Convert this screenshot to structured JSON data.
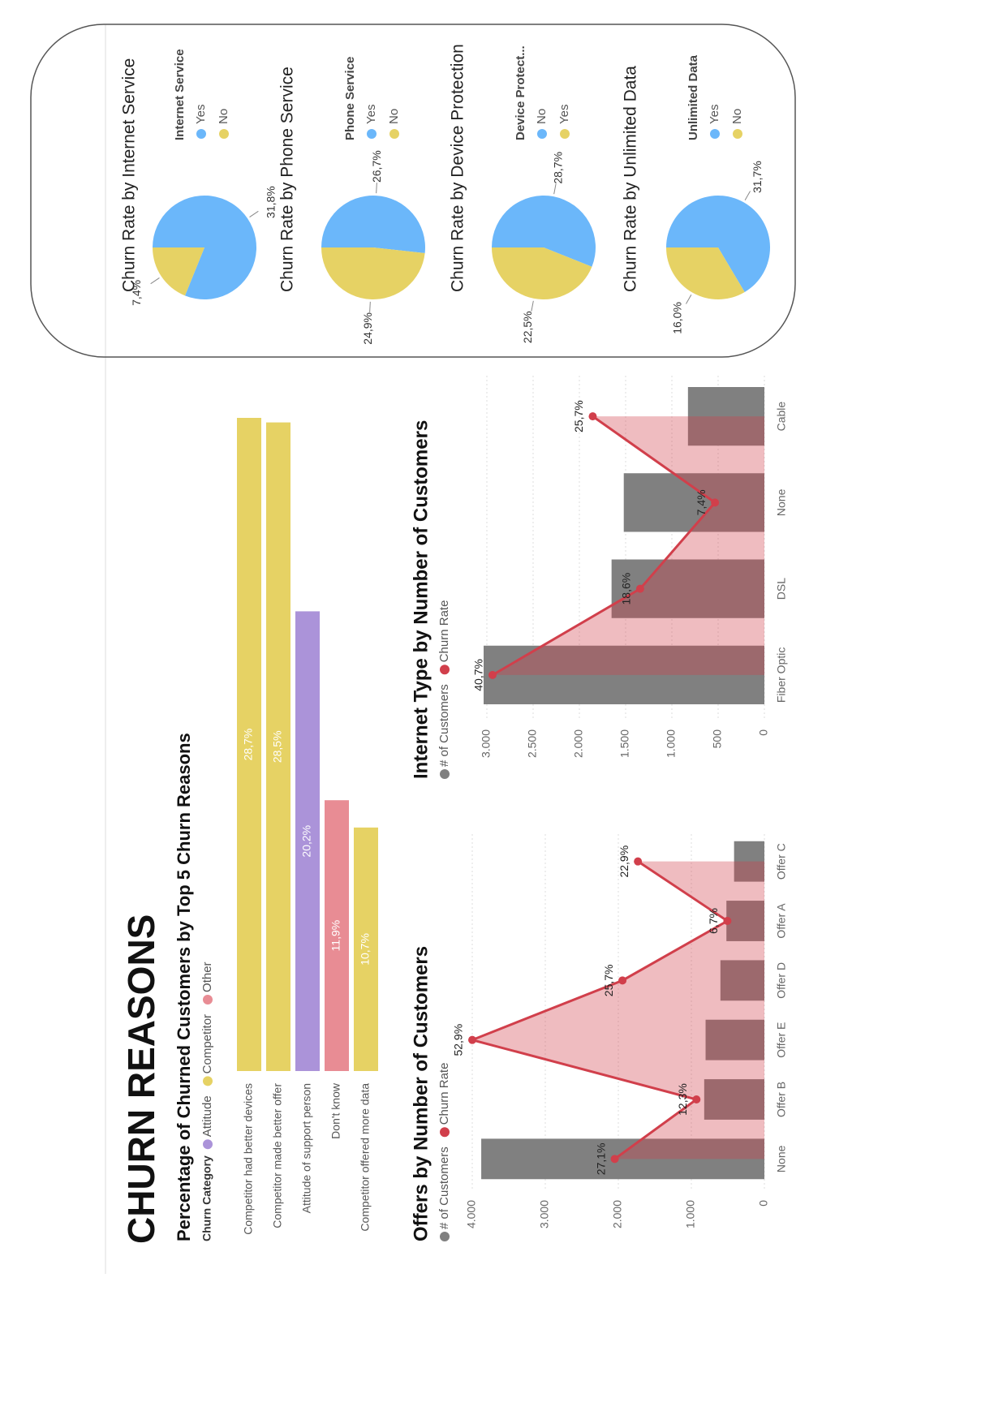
{
  "title": "CHURN REASONS",
  "chart_data": [
    {
      "type": "bar",
      "orientation": "horizontal",
      "title": "Percentage of Churned Customers by Top 5 Churn Reasons",
      "legend_title": "Churn Category",
      "legend": [
        {
          "name": "Attitude",
          "color": "#ab93d9"
        },
        {
          "name": "Competitor",
          "color": "#e6d264"
        },
        {
          "name": "Other",
          "color": "#e88c94"
        }
      ],
      "categories": [
        "Competitor had better devices",
        "Competitor made better offer",
        "Attitude of support person",
        "Don't know",
        "Competitor offered more data"
      ],
      "churn_category": [
        "Competitor",
        "Competitor",
        "Attitude",
        "Other",
        "Competitor"
      ],
      "values": [
        28.7,
        28.5,
        20.2,
        11.9,
        10.7
      ],
      "value_labels": [
        "28,7%",
        "28,5%",
        "20,2%",
        "11,9%",
        "10,7%"
      ]
    },
    {
      "type": "combo",
      "title": "Offers by Number of Customers",
      "categories": [
        "None",
        "Offer B",
        "Offer E",
        "Offer D",
        "Offer A",
        "Offer C"
      ],
      "series": [
        {
          "name": "# of Customers",
          "color": "#808080",
          "values": [
            3877,
            824,
            805,
            602,
            520,
            415
          ]
        },
        {
          "name": "Churn Rate",
          "color": "#d13f4b",
          "axis": "y2",
          "values": [
            27.1,
            12.3,
            52.9,
            25.7,
            6.7,
            22.9
          ],
          "value_labels": [
            "27,1%",
            "12,3%",
            "52,9%",
            "25,7%",
            "6,7%",
            "22,9%"
          ]
        }
      ],
      "ylim": [
        0,
        4000
      ],
      "yticks": [
        0,
        {
          "value": 1000,
          "label": "1.000"
        },
        {
          "value": 2000,
          "label": "2.000"
        },
        {
          "value": 3000,
          "label": "3.000"
        },
        {
          "value": 4000,
          "label": "4.000"
        }
      ],
      "grid": true
    },
    {
      "type": "combo",
      "title": "Internet Type by Number of Customers",
      "categories": [
        "Fiber Optic",
        "DSL",
        "None",
        "Cable"
      ],
      "series": [
        {
          "name": "# of Customers",
          "color": "#808080",
          "values": [
            3035,
            1652,
            1520,
            826
          ]
        },
        {
          "name": "Churn Rate",
          "color": "#d13f4b",
          "axis": "y2",
          "values": [
            40.7,
            18.6,
            7.4,
            25.7
          ],
          "value_labels": [
            "40,7%",
            "18,6%",
            "7,4%",
            "25,7%"
          ]
        }
      ],
      "ylim": [
        0,
        3000
      ],
      "yticks": [
        0,
        500,
        {
          "value": 1000,
          "label": "1.000"
        },
        {
          "value": 1500,
          "label": "1.500"
        },
        {
          "value": 2000,
          "label": "2.000"
        },
        {
          "value": 2500,
          "label": "2.500"
        },
        {
          "value": 3000,
          "label": "3.000"
        }
      ],
      "grid": true
    },
    {
      "type": "pie",
      "title": "Churn Rate by Internet Service",
      "legend_title": "Internet Service",
      "categories": [
        "Yes",
        "No"
      ],
      "values": [
        31.8,
        7.4
      ],
      "value_labels": [
        "31,8%",
        "7,4%"
      ],
      "colors": [
        "#6bb7fa",
        "#e6d264"
      ]
    },
    {
      "type": "pie",
      "title": "Churn Rate by Phone Service",
      "legend_title": "Phone Service",
      "categories": [
        "Yes",
        "No"
      ],
      "values": [
        26.7,
        24.9
      ],
      "value_labels": [
        "26,7%",
        "24,9%"
      ],
      "colors": [
        "#6bb7fa",
        "#e6d264"
      ]
    },
    {
      "type": "pie",
      "title": "Churn Rate by Device Protection",
      "legend_title": "Device Protect...",
      "categories": [
        "No",
        "Yes"
      ],
      "values": [
        28.7,
        22.5
      ],
      "value_labels": [
        "28,7%",
        "22,5%"
      ],
      "colors": [
        "#6bb7fa",
        "#e6d264"
      ]
    },
    {
      "type": "pie",
      "title": "Churn Rate by Unlimited Data",
      "legend_title": "Unlimited Data",
      "categories": [
        "Yes",
        "No"
      ],
      "values": [
        31.7,
        16.0
      ],
      "value_labels": [
        "31,7%",
        "16,0%"
      ],
      "colors": [
        "#6bb7fa",
        "#e6d264"
      ]
    }
  ]
}
